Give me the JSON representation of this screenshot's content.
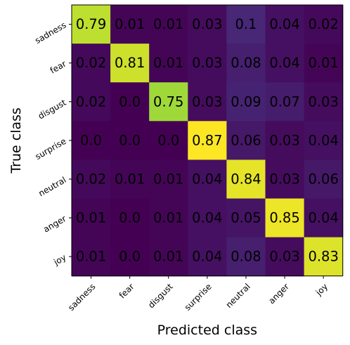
{
  "chart_data": {
    "type": "heatmap",
    "xlabel": "Predicted class",
    "ylabel": "True class",
    "x_categories": [
      "sadness",
      "fear",
      "disgust",
      "surprise",
      "neutral",
      "anger",
      "joy"
    ],
    "y_categories": [
      "sadness",
      "fear",
      "disgust",
      "surprise",
      "neutral",
      "anger",
      "joy"
    ],
    "values": [
      [
        0.79,
        0.01,
        0.01,
        0.03,
        0.1,
        0.04,
        0.02
      ],
      [
        0.02,
        0.81,
        0.01,
        0.03,
        0.08,
        0.04,
        0.01
      ],
      [
        0.02,
        0.0,
        0.75,
        0.03,
        0.09,
        0.07,
        0.03
      ],
      [
        0.0,
        0.0,
        0.0,
        0.87,
        0.06,
        0.03,
        0.04
      ],
      [
        0.02,
        0.01,
        0.01,
        0.04,
        0.84,
        0.03,
        0.06
      ],
      [
        0.01,
        0.0,
        0.01,
        0.04,
        0.05,
        0.85,
        0.04
      ],
      [
        0.01,
        0.0,
        0.01,
        0.04,
        0.08,
        0.03,
        0.83
      ]
    ],
    "value_labels": [
      [
        "0.79",
        "0.01",
        "0.01",
        "0.03",
        "0.1",
        "0.04",
        "0.02"
      ],
      [
        "0.02",
        "0.81",
        "0.01",
        "0.03",
        "0.08",
        "0.04",
        "0.01"
      ],
      [
        "0.02",
        "0.0",
        "0.75",
        "0.03",
        "0.09",
        "0.07",
        "0.03"
      ],
      [
        "0.0",
        "0.0",
        "0.0",
        "0.87",
        "0.06",
        "0.03",
        "0.04"
      ],
      [
        "0.02",
        "0.01",
        "0.01",
        "0.04",
        "0.84",
        "0.03",
        "0.06"
      ],
      [
        "0.01",
        "0.0",
        "0.01",
        "0.04",
        "0.05",
        "0.85",
        "0.04"
      ],
      [
        "0.01",
        "0.0",
        "0.01",
        "0.04",
        "0.08",
        "0.03",
        "0.83"
      ]
    ],
    "colormap": "viridis",
    "grid": false
  }
}
